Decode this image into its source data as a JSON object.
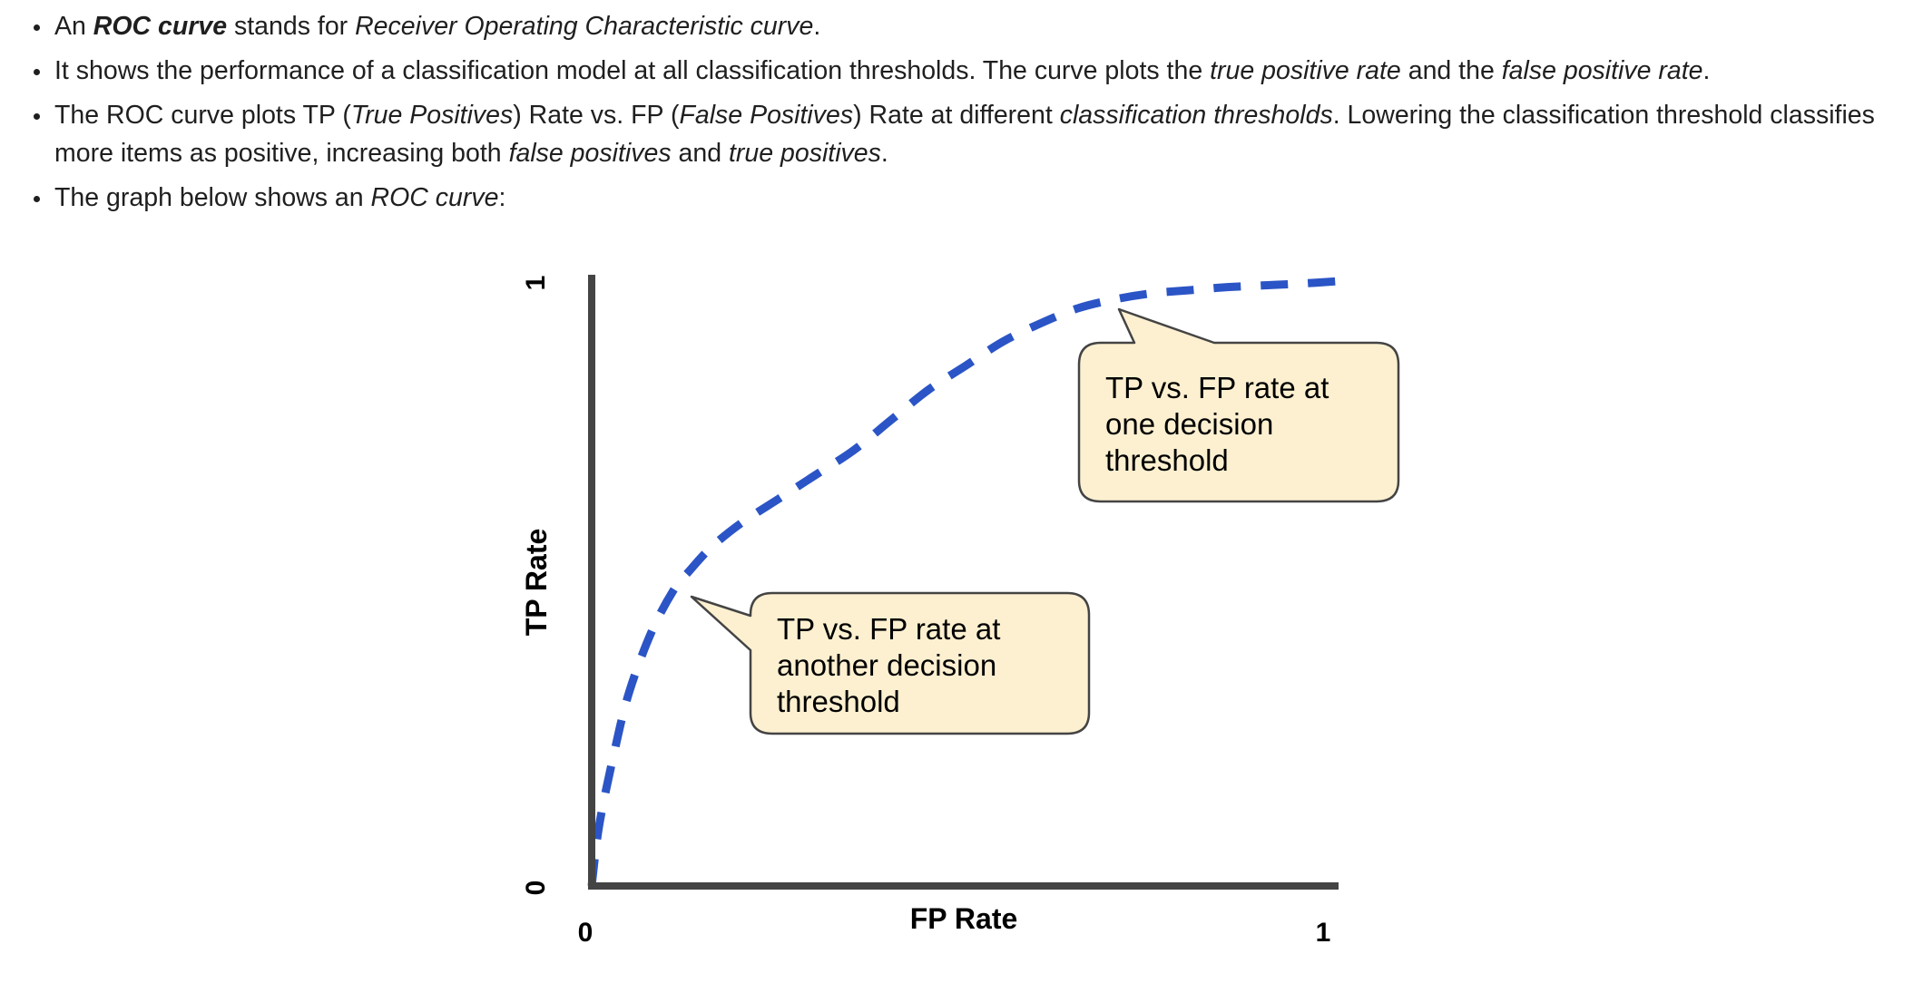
{
  "bullets": [
    [
      {
        "t": "An ",
        "s": ""
      },
      {
        "t": "ROC curve",
        "s": "bi"
      },
      {
        "t": " stands for ",
        "s": ""
      },
      {
        "t": "Receiver Operating Characteristic curve",
        "s": "i"
      },
      {
        "t": ".",
        "s": ""
      }
    ],
    [
      {
        "t": "It shows the performance of a classification model at all classification thresholds. The curve plots the ",
        "s": ""
      },
      {
        "t": "true positive rate",
        "s": "i"
      },
      {
        "t": " and the ",
        "s": ""
      },
      {
        "t": "false positive rate",
        "s": "i"
      },
      {
        "t": ".",
        "s": ""
      }
    ],
    [
      {
        "t": "The ROC curve plots TP (",
        "s": ""
      },
      {
        "t": "True Positives",
        "s": "i"
      },
      {
        "t": ") Rate vs. FP (",
        "s": ""
      },
      {
        "t": "False Positives",
        "s": "i"
      },
      {
        "t": ") Rate at different ",
        "s": ""
      },
      {
        "t": "classification thresholds",
        "s": "i"
      },
      {
        "t": ". Lowering the classification threshold classifies more items as positive, increasing both ",
        "s": ""
      },
      {
        "t": "false positives",
        "s": "i"
      },
      {
        "t": " and ",
        "s": ""
      },
      {
        "t": "true positives",
        "s": "i"
      },
      {
        "t": ".",
        "s": ""
      }
    ],
    [
      {
        "t": "The graph below shows an ",
        "s": ""
      },
      {
        "t": "ROC curve",
        "s": "i"
      },
      {
        "t": ":",
        "s": ""
      }
    ]
  ],
  "chart_data": {
    "type": "line",
    "xlabel": "FP Rate",
    "ylabel": "TP Rate",
    "xlim": [
      0,
      1
    ],
    "ylim": [
      0,
      1
    ],
    "x_ticks": [
      "0",
      "1"
    ],
    "y_ticks": [
      "0",
      "1"
    ],
    "series": [
      {
        "style": "dashed",
        "color": "#2b55c6",
        "x": [
          0.0,
          0.01,
          0.03,
          0.05,
          0.08,
          0.11,
          0.13,
          0.16,
          0.2,
          0.25,
          0.3,
          0.35,
          0.4,
          0.45,
          0.5,
          0.55,
          0.6,
          0.65,
          0.7,
          0.75,
          0.8,
          0.85,
          0.9,
          0.95,
          1.0
        ],
        "y": [
          0.0,
          0.1,
          0.22,
          0.32,
          0.42,
          0.49,
          0.52,
          0.56,
          0.6,
          0.64,
          0.68,
          0.72,
          0.77,
          0.82,
          0.86,
          0.9,
          0.93,
          0.955,
          0.97,
          0.98,
          0.985,
          0.99,
          0.993,
          0.996,
          1.0
        ]
      }
    ],
    "annotations": [
      {
        "text": [
          "TP vs. FP rate at",
          "one decision",
          "threshold"
        ],
        "point": [
          0.71,
          0.96
        ]
      },
      {
        "text": [
          "TP vs. FP rate at",
          "another decision",
          "threshold"
        ],
        "point": [
          0.13,
          0.47
        ]
      }
    ],
    "colors": {
      "axis": "#444444",
      "line": "#2b55c6",
      "callout_fill": "#fcf0d0",
      "callout_stroke": "#444444"
    }
  }
}
